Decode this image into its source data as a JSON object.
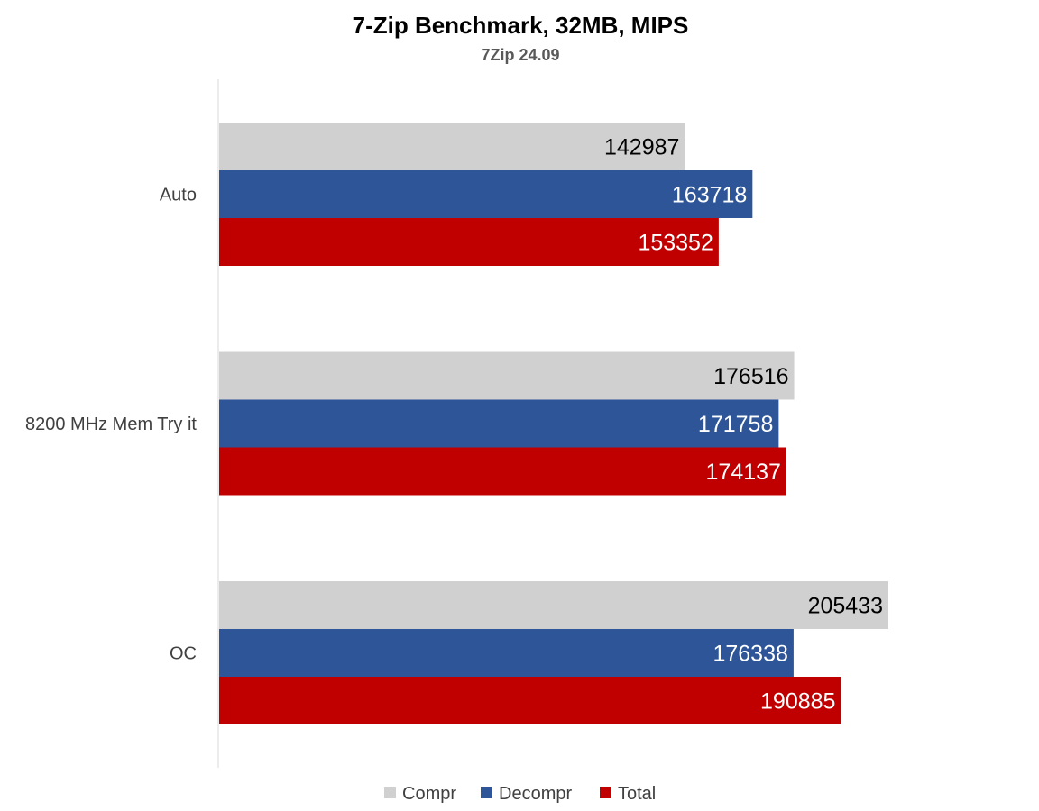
{
  "chart_data": {
    "type": "bar",
    "orientation": "horizontal",
    "title": "7-Zip Benchmark, 32MB, MIPS",
    "subtitle": "7Zip 24.09",
    "categories": [
      "Auto",
      "8200 MHz Mem Try it",
      "OC"
    ],
    "series": [
      {
        "name": "Compr",
        "color": "#d0d0d0",
        "label_color": "#000000",
        "values": [
          142987,
          176516,
          205433
        ]
      },
      {
        "name": "Decompr",
        "color": "#2e5597",
        "label_color": "#ffffff",
        "values": [
          163718,
          171758,
          176338
        ]
      },
      {
        "name": "Total",
        "color": "#c00000",
        "label_color": "#ffffff",
        "values": [
          153352,
          174137,
          190885
        ]
      }
    ],
    "xlim": [
      0,
      205433
    ],
    "grid": false,
    "legend": "bottom"
  }
}
